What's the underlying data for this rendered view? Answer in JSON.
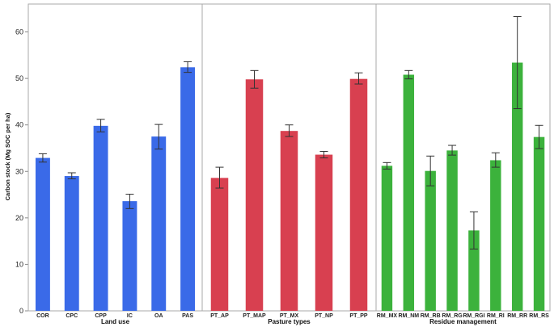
{
  "chart_data": {
    "type": "bar",
    "ylabel": "Carbon stock (Mg SOC per ha)",
    "ylim": [
      0,
      66
    ],
    "yticks": [
      0,
      10,
      20,
      30,
      40,
      50,
      60
    ],
    "grid": false,
    "legend": "none",
    "panels": [
      {
        "xlabel": "Land use",
        "color": "#3a6ae8",
        "categories": [
          "COR",
          "CPC",
          "CPP",
          "IC",
          "OA",
          "PAS"
        ],
        "values": [
          32.9,
          29.0,
          39.8,
          23.6,
          37.5,
          52.4
        ],
        "error_low": [
          32.0,
          28.4,
          38.5,
          22.0,
          34.8,
          51.3
        ],
        "error_high": [
          33.8,
          29.7,
          41.2,
          25.1,
          40.1,
          53.6
        ]
      },
      {
        "xlabel": "Pasture types",
        "color": "#d84050",
        "categories": [
          "PT_AP",
          "PT_MAP",
          "PT_MX",
          "PT_NP",
          "PT_PP"
        ],
        "values": [
          28.6,
          49.8,
          38.7,
          33.6,
          49.9
        ],
        "error_low": [
          26.4,
          47.9,
          37.5,
          32.9,
          48.8
        ],
        "error_high": [
          30.9,
          51.7,
          40.0,
          34.3,
          51.2
        ]
      },
      {
        "xlabel": "Residue management",
        "color": "#3cb23c",
        "categories": [
          "RM_MX",
          "RM_NM",
          "RM_RB",
          "RM_RG",
          "RM_RGI",
          "RM_RI",
          "RM_RR",
          "RM_RS"
        ],
        "values": [
          31.2,
          50.8,
          30.1,
          34.5,
          17.3,
          32.4,
          53.4,
          37.4
        ],
        "error_low": [
          30.5,
          49.9,
          26.9,
          33.5,
          13.3,
          30.9,
          43.5,
          34.9
        ],
        "error_high": [
          31.9,
          51.7,
          33.3,
          35.6,
          21.3,
          34.0,
          63.3,
          39.9
        ]
      }
    ]
  }
}
